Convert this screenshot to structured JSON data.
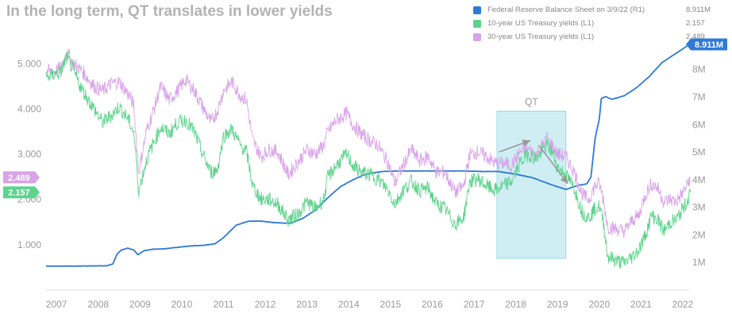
{
  "chart_data": {
    "type": "line",
    "title": "In the long term, QT translates in lower yields",
    "x_ticks": [
      "2007",
      "2008",
      "2009",
      "2010",
      "2011",
      "2012",
      "2013",
      "2014",
      "2015",
      "2016",
      "2017",
      "2018",
      "2019",
      "2020",
      "2021",
      "2022"
    ],
    "x_range": [
      2006.75,
      2022.0
    ],
    "y_left": {
      "ticks": [
        "1.000",
        "2.000",
        "3.000",
        "4.000",
        "5.000"
      ],
      "range": [
        0.0,
        5.6
      ]
    },
    "y_right": {
      "ticks": [
        "1M",
        "2M",
        "3M",
        "4M",
        "5M",
        "6M",
        "7M",
        "8M"
      ],
      "range": [
        0.0,
        9.2
      ]
    },
    "grid": false,
    "legend_position": "top-right",
    "series": [
      {
        "name": "Federal Reserve Balance Sheet on 3/9/22 (R1)",
        "axis": "right",
        "color": "#2f7ad6",
        "last_value": "8.911M",
        "tag": "8.911M",
        "points": [
          [
            2006.75,
            0.87
          ],
          [
            2007.5,
            0.87
          ],
          [
            2008.2,
            0.88
          ],
          [
            2008.35,
            0.95
          ],
          [
            2008.45,
            1.3
          ],
          [
            2008.55,
            1.45
          ],
          [
            2008.7,
            1.52
          ],
          [
            2008.85,
            1.45
          ],
          [
            2008.95,
            1.28
          ],
          [
            2009.1,
            1.43
          ],
          [
            2009.3,
            1.48
          ],
          [
            2009.6,
            1.5
          ],
          [
            2009.9,
            1.55
          ],
          [
            2010.2,
            1.6
          ],
          [
            2010.5,
            1.62
          ],
          [
            2010.8,
            1.68
          ],
          [
            2011.0,
            1.9
          ],
          [
            2011.3,
            2.35
          ],
          [
            2011.6,
            2.5
          ],
          [
            2011.9,
            2.5
          ],
          [
            2012.2,
            2.45
          ],
          [
            2012.6,
            2.42
          ],
          [
            2012.9,
            2.6
          ],
          [
            2013.2,
            2.9
          ],
          [
            2013.5,
            3.35
          ],
          [
            2013.8,
            3.75
          ],
          [
            2014.1,
            4.0
          ],
          [
            2014.4,
            4.2
          ],
          [
            2014.8,
            4.3
          ],
          [
            2015.2,
            4.32
          ],
          [
            2015.6,
            4.32
          ],
          [
            2016.0,
            4.32
          ],
          [
            2016.4,
            4.32
          ],
          [
            2016.8,
            4.32
          ],
          [
            2017.2,
            4.3
          ],
          [
            2017.6,
            4.3
          ],
          [
            2018.0,
            4.2
          ],
          [
            2018.4,
            4.08
          ],
          [
            2018.8,
            3.85
          ],
          [
            2019.2,
            3.65
          ],
          [
            2019.5,
            3.8
          ],
          [
            2019.7,
            3.85
          ],
          [
            2019.8,
            4.1
          ],
          [
            2019.9,
            5.5
          ],
          [
            2020.0,
            6.2
          ],
          [
            2020.05,
            6.95
          ],
          [
            2020.15,
            7.02
          ],
          [
            2020.3,
            6.92
          ],
          [
            2020.6,
            7.05
          ],
          [
            2020.9,
            7.35
          ],
          [
            2021.2,
            7.75
          ],
          [
            2021.5,
            8.25
          ],
          [
            2021.8,
            8.55
          ],
          [
            2022.0,
            8.75
          ],
          [
            2022.1,
            8.85
          ],
          [
            2022.18,
            8.91
          ]
        ]
      },
      {
        "name": "10-year US Treasury yields (L1)",
        "axis": "left",
        "color": "#5dd38c",
        "last_value": "2.157",
        "tag": "2.157",
        "points": [
          [
            2006.75,
            4.7
          ],
          [
            2006.9,
            4.75
          ],
          [
            2007.1,
            4.8
          ],
          [
            2007.25,
            5.15
          ],
          [
            2007.4,
            4.85
          ],
          [
            2007.6,
            4.45
          ],
          [
            2007.9,
            4.0
          ],
          [
            2008.1,
            3.7
          ],
          [
            2008.3,
            3.85
          ],
          [
            2008.5,
            4.05
          ],
          [
            2008.7,
            3.8
          ],
          [
            2008.85,
            3.5
          ],
          [
            2008.97,
            2.2
          ],
          [
            2009.15,
            2.85
          ],
          [
            2009.3,
            3.2
          ],
          [
            2009.5,
            3.6
          ],
          [
            2009.7,
            3.45
          ],
          [
            2009.9,
            3.7
          ],
          [
            2010.1,
            3.75
          ],
          [
            2010.3,
            3.5
          ],
          [
            2010.5,
            3.0
          ],
          [
            2010.7,
            2.6
          ],
          [
            2010.85,
            2.65
          ],
          [
            2011.0,
            3.4
          ],
          [
            2011.2,
            3.55
          ],
          [
            2011.4,
            3.2
          ],
          [
            2011.55,
            3.05
          ],
          [
            2011.7,
            2.3
          ],
          [
            2011.9,
            2.0
          ],
          [
            2012.1,
            2.0
          ],
          [
            2012.3,
            1.9
          ],
          [
            2012.55,
            1.55
          ],
          [
            2012.8,
            1.7
          ],
          [
            2013.0,
            1.95
          ],
          [
            2013.2,
            1.8
          ],
          [
            2013.4,
            2.0
          ],
          [
            2013.5,
            2.5
          ],
          [
            2013.7,
            2.75
          ],
          [
            2013.95,
            3.0
          ],
          [
            2014.1,
            2.75
          ],
          [
            2014.3,
            2.6
          ],
          [
            2014.5,
            2.55
          ],
          [
            2014.7,
            2.45
          ],
          [
            2014.95,
            2.2
          ],
          [
            2015.1,
            1.9
          ],
          [
            2015.3,
            2.2
          ],
          [
            2015.5,
            2.4
          ],
          [
            2015.7,
            2.2
          ],
          [
            2015.9,
            2.25
          ],
          [
            2016.1,
            1.9
          ],
          [
            2016.3,
            1.8
          ],
          [
            2016.55,
            1.45
          ],
          [
            2016.75,
            1.6
          ],
          [
            2016.9,
            2.4
          ],
          [
            2017.1,
            2.45
          ],
          [
            2017.3,
            2.3
          ],
          [
            2017.5,
            2.2
          ],
          [
            2017.7,
            2.3
          ],
          [
            2017.9,
            2.4
          ],
          [
            2018.1,
            2.8
          ],
          [
            2018.3,
            3.0
          ],
          [
            2018.5,
            2.9
          ],
          [
            2018.75,
            3.2
          ],
          [
            2018.9,
            3.0
          ],
          [
            2019.0,
            2.7
          ],
          [
            2019.2,
            2.55
          ],
          [
            2019.4,
            2.25
          ],
          [
            2019.6,
            1.7
          ],
          [
            2019.75,
            1.6
          ],
          [
            2019.9,
            1.8
          ],
          [
            2020.0,
            1.85
          ],
          [
            2020.1,
            1.5
          ],
          [
            2020.2,
            0.75
          ],
          [
            2020.4,
            0.65
          ],
          [
            2020.6,
            0.6
          ],
          [
            2020.8,
            0.75
          ],
          [
            2020.95,
            0.9
          ],
          [
            2021.1,
            1.2
          ],
          [
            2021.25,
            1.65
          ],
          [
            2021.4,
            1.55
          ],
          [
            2021.55,
            1.3
          ],
          [
            2021.7,
            1.5
          ],
          [
            2021.85,
            1.55
          ],
          [
            2022.0,
            1.8
          ],
          [
            2022.1,
            1.95
          ],
          [
            2022.18,
            2.15
          ]
        ]
      },
      {
        "name": "30-year US Treasury yields (L1)",
        "axis": "left",
        "color": "#d9a3e8",
        "last_value": "2.489",
        "tag": "2.489",
        "points": [
          [
            2006.75,
            4.85
          ],
          [
            2006.9,
            4.8
          ],
          [
            2007.1,
            4.9
          ],
          [
            2007.25,
            5.25
          ],
          [
            2007.4,
            5.0
          ],
          [
            2007.6,
            4.85
          ],
          [
            2007.9,
            4.5
          ],
          [
            2008.1,
            4.4
          ],
          [
            2008.3,
            4.55
          ],
          [
            2008.5,
            4.6
          ],
          [
            2008.7,
            4.35
          ],
          [
            2008.85,
            4.1
          ],
          [
            2008.97,
            2.6
          ],
          [
            2009.15,
            3.5
          ],
          [
            2009.3,
            3.9
          ],
          [
            2009.5,
            4.5
          ],
          [
            2009.7,
            4.2
          ],
          [
            2009.9,
            4.4
          ],
          [
            2010.1,
            4.65
          ],
          [
            2010.3,
            4.4
          ],
          [
            2010.5,
            4.05
          ],
          [
            2010.7,
            3.7
          ],
          [
            2010.85,
            3.95
          ],
          [
            2011.0,
            4.4
          ],
          [
            2011.2,
            4.6
          ],
          [
            2011.4,
            4.3
          ],
          [
            2011.55,
            4.2
          ],
          [
            2011.7,
            3.3
          ],
          [
            2011.9,
            2.95
          ],
          [
            2012.1,
            3.1
          ],
          [
            2012.3,
            3.05
          ],
          [
            2012.55,
            2.55
          ],
          [
            2012.8,
            2.85
          ],
          [
            2013.0,
            3.1
          ],
          [
            2013.2,
            3.0
          ],
          [
            2013.4,
            3.2
          ],
          [
            2013.5,
            3.5
          ],
          [
            2013.7,
            3.75
          ],
          [
            2013.95,
            3.9
          ],
          [
            2014.1,
            3.65
          ],
          [
            2014.3,
            3.45
          ],
          [
            2014.5,
            3.3
          ],
          [
            2014.7,
            3.2
          ],
          [
            2014.95,
            2.8
          ],
          [
            2015.1,
            2.35
          ],
          [
            2015.3,
            2.75
          ],
          [
            2015.5,
            3.1
          ],
          [
            2015.7,
            2.85
          ],
          [
            2015.9,
            2.95
          ],
          [
            2016.1,
            2.6
          ],
          [
            2016.3,
            2.6
          ],
          [
            2016.55,
            2.15
          ],
          [
            2016.75,
            2.3
          ],
          [
            2016.9,
            3.0
          ],
          [
            2017.1,
            3.05
          ],
          [
            2017.3,
            2.95
          ],
          [
            2017.5,
            2.8
          ],
          [
            2017.7,
            2.8
          ],
          [
            2017.9,
            2.75
          ],
          [
            2018.1,
            3.05
          ],
          [
            2018.3,
            3.1
          ],
          [
            2018.5,
            3.0
          ],
          [
            2018.75,
            3.35
          ],
          [
            2018.9,
            3.15
          ],
          [
            2019.0,
            3.0
          ],
          [
            2019.2,
            2.95
          ],
          [
            2019.4,
            2.6
          ],
          [
            2019.6,
            2.1
          ],
          [
            2019.75,
            2.0
          ],
          [
            2019.9,
            2.3
          ],
          [
            2020.0,
            2.35
          ],
          [
            2020.1,
            2.0
          ],
          [
            2020.2,
            1.4
          ],
          [
            2020.4,
            1.35
          ],
          [
            2020.6,
            1.3
          ],
          [
            2020.8,
            1.55
          ],
          [
            2020.95,
            1.65
          ],
          [
            2021.1,
            2.1
          ],
          [
            2021.25,
            2.35
          ],
          [
            2021.4,
            2.25
          ],
          [
            2021.55,
            1.95
          ],
          [
            2021.7,
            2.0
          ],
          [
            2021.85,
            1.95
          ],
          [
            2022.0,
            2.15
          ],
          [
            2022.1,
            2.3
          ],
          [
            2022.18,
            2.49
          ]
        ]
      }
    ],
    "annotations": [
      {
        "label": "QT",
        "type": "shaded-region",
        "x_start": 2017.55,
        "x_end": 2019.2,
        "y_start": 0.7,
        "y_end": 3.95,
        "fill": "#c7ecf3",
        "stroke": "#7fd6e3"
      },
      {
        "type": "arrow",
        "color": "#999999",
        "points": [
          [
            2017.6,
            3.05
          ],
          [
            2018.35,
            3.3
          ]
        ]
      },
      {
        "type": "arrow",
        "color": "#999999",
        "points": [
          [
            2018.55,
            3.2
          ],
          [
            2019.25,
            2.35
          ]
        ]
      }
    ]
  }
}
